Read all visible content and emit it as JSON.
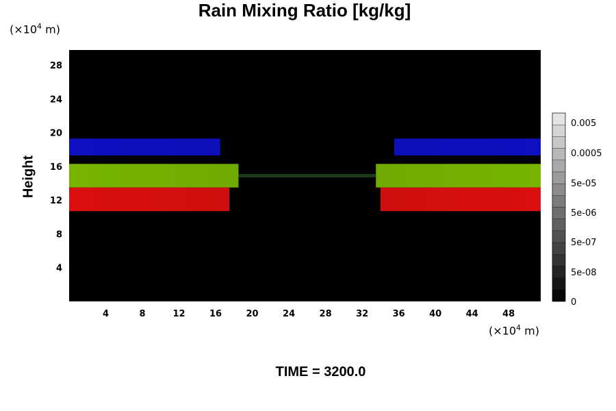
{
  "chart_data": {
    "type": "heatmap",
    "title": "Rain Mixing Ratio [kg/kg]",
    "ylabel": "Height",
    "xlabel": "",
    "y_unit": "(×10⁴ m)",
    "x_unit": "(×10⁴ m)",
    "footer": "TIME = 3200.0",
    "xlim": [
      0,
      51.5
    ],
    "ylim": [
      0,
      29.8
    ],
    "x_ticks": [
      "4",
      "8",
      "12",
      "16",
      "20",
      "24",
      "28",
      "32",
      "36",
      "40",
      "44",
      "48"
    ],
    "y_ticks": [
      "4",
      "8",
      "12",
      "16",
      "20",
      "24",
      "28"
    ],
    "colorbar": {
      "tick_labels": [
        "0.005",
        "0.0005",
        "5e-05",
        "5e-06",
        "5e-07",
        "5e-08",
        "0"
      ],
      "levels": 16
    },
    "background_color": "#000000",
    "bands": [
      {
        "color": "#1010c8",
        "y_range": [
          17.3,
          19.3
        ],
        "x_extent_left": [
          0,
          16.5
        ],
        "x_extent_right": [
          35.5,
          51.5
        ]
      },
      {
        "color": "#7ab800",
        "y_range": [
          13.5,
          16.3
        ],
        "x_extent_left": [
          0,
          18.5
        ],
        "x_extent_right": [
          33.5,
          51.5
        ]
      },
      {
        "color": "#e01010",
        "y_range": [
          10.7,
          13.5
        ],
        "x_extent_left": [
          0,
          17.5
        ],
        "x_extent_right": [
          34,
          51.5
        ]
      },
      {
        "color": "#1a3a1a",
        "y_range": [
          14.7,
          15.1
        ],
        "x_extent_left": [
          18.5,
          33.5
        ],
        "x_extent_right": [
          18.5,
          33.5
        ]
      }
    ]
  }
}
